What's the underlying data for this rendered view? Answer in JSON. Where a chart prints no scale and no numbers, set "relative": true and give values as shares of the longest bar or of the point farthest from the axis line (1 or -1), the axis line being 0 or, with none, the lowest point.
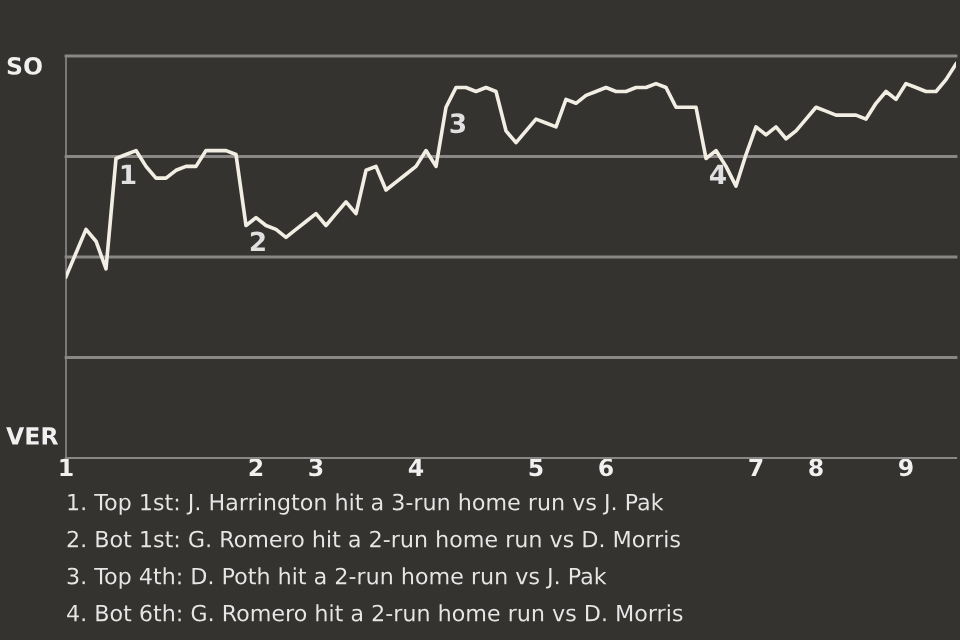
{
  "chart_data": {
    "type": "line",
    "relative": true,
    "categories": [
      "1",
      null,
      null,
      null,
      null,
      null,
      null,
      null,
      null,
      null,
      null,
      null,
      null,
      null,
      null,
      null,
      null,
      null,
      null,
      "2",
      null,
      null,
      null,
      null,
      null,
      "3",
      null,
      null,
      null,
      null,
      null,
      null,
      null,
      null,
      null,
      "4",
      null,
      null,
      null,
      null,
      null,
      null,
      null,
      null,
      null,
      null,
      null,
      "5",
      null,
      null,
      null,
      null,
      null,
      null,
      "6",
      null,
      null,
      null,
      null,
      null,
      null,
      null,
      null,
      null,
      null,
      null,
      null,
      null,
      null,
      "7",
      null,
      null,
      null,
      null,
      null,
      "8",
      null,
      null,
      null,
      null,
      null,
      null,
      null,
      null,
      "9",
      null,
      null,
      null,
      null,
      null
    ],
    "series": [
      {
        "color": "#f2eee4",
        "values": [
          0.46,
          0.52,
          0.58,
          0.55,
          0.48,
          0.76,
          0.77,
          0.78,
          0.74,
          0.71,
          0.71,
          0.73,
          0.74,
          0.74,
          0.78,
          0.78,
          0.78,
          0.77,
          0.59,
          0.61,
          0.59,
          0.58,
          0.56,
          0.58,
          0.6,
          0.62,
          0.59,
          0.62,
          0.65,
          0.62,
          0.73,
          0.74,
          0.68,
          0.7,
          0.72,
          0.74,
          0.78,
          0.74,
          0.89,
          0.94,
          0.94,
          0.93,
          0.94,
          0.93,
          0.83,
          0.8,
          0.83,
          0.86,
          0.85,
          0.84,
          0.91,
          0.9,
          0.92,
          0.93,
          0.94,
          0.93,
          0.93,
          0.94,
          0.94,
          0.95,
          0.94,
          0.89,
          0.89,
          0.89,
          0.76,
          0.78,
          0.74,
          0.69,
          0.77,
          0.84,
          0.82,
          0.84,
          0.81,
          0.83,
          0.86,
          0.89,
          0.88,
          0.87,
          0.87,
          0.87,
          0.86,
          0.9,
          0.93,
          0.91,
          0.95,
          0.94,
          0.93,
          0.93,
          0.96,
          1
        ],
        "marker": "none"
      }
    ],
    "grid": "y",
    "annotations": [
      {
        "text": "1",
        "y": 0.76
      },
      {
        "text": "2",
        "y": 0.59
      },
      {
        "text": "3",
        "y": 0.89
      },
      {
        "text": "4",
        "y": 0.76
      },
      "SO",
      "VER",
      "1. Top 1st: J. Harrington hit a 3-run home run vs J. Pak",
      "2. Bot 1st: G. Romero hit a 2-run home run vs D. Morris",
      "3. Top 4th: D. Poth hit a 2-run home run vs J. Pak",
      "4. Bot 6th: G. Romero hit a 2-run home run vs D. Morris"
    ]
  }
}
